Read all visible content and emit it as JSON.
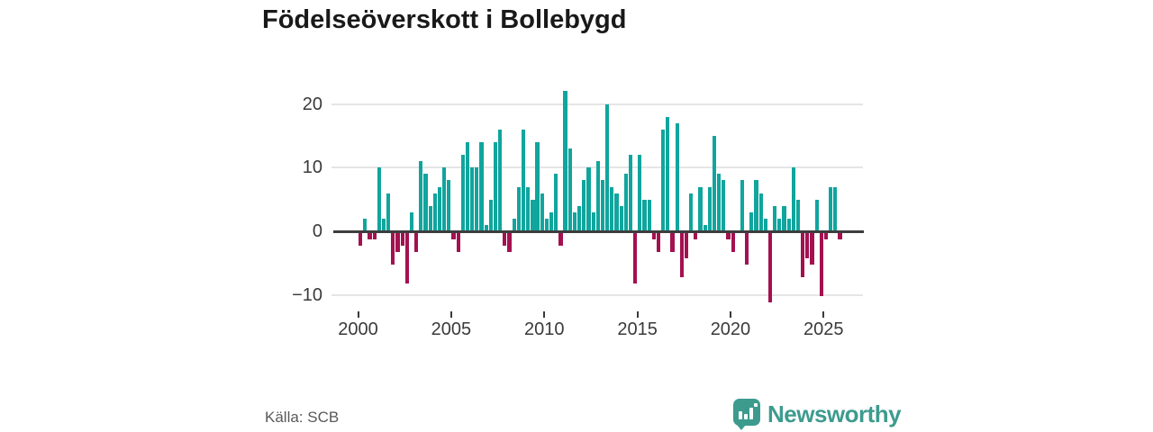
{
  "title": "Födelseöverskott i Bollebygd",
  "source": "Källa: SCB",
  "branding": {
    "logo_text": "Newsworthy",
    "brand_color": "#3d9b8e",
    "logo_icon": "bar-chart-speech-bubble"
  },
  "colors": {
    "positive_bar": "#10a59d",
    "negative_bar": "#a31150",
    "gridline": "#e5e5e5",
    "zero_line": "#3d3d3d",
    "axis_text": "#3a3a3a"
  },
  "chart_data": {
    "type": "bar",
    "title": "Födelseöverskott i Bollebygd",
    "frequency": "quarterly",
    "x_start_year": 2000,
    "xticks": [
      "2000",
      "2005",
      "2010",
      "2015",
      "2020",
      "2025"
    ],
    "yticks": [
      "20",
      "10",
      "0",
      "−10"
    ],
    "ytick_values": [
      20,
      10,
      0,
      -10
    ],
    "ylim": [
      -12,
      23
    ],
    "grid": "horizontal-only",
    "legend": "none",
    "series": [
      {
        "year": 2000,
        "q": [
          -2,
          2,
          -1,
          -1
        ]
      },
      {
        "year": 2001,
        "q": [
          10,
          2,
          6,
          -5
        ]
      },
      {
        "year": 2002,
        "q": [
          -3,
          -2,
          -8,
          3
        ]
      },
      {
        "year": 2003,
        "q": [
          -3,
          11,
          9,
          4
        ]
      },
      {
        "year": 2004,
        "q": [
          6,
          7,
          10,
          8
        ]
      },
      {
        "year": 2005,
        "q": [
          -1,
          -3,
          12,
          14
        ]
      },
      {
        "year": 2006,
        "q": [
          10,
          10,
          14,
          1
        ]
      },
      {
        "year": 2007,
        "q": [
          5,
          14,
          16,
          -2
        ]
      },
      {
        "year": 2008,
        "q": [
          -3,
          2,
          7,
          16
        ]
      },
      {
        "year": 2009,
        "q": [
          7,
          5,
          14,
          6
        ]
      },
      {
        "year": 2010,
        "q": [
          2,
          3,
          9,
          -2
        ]
      },
      {
        "year": 2011,
        "q": [
          22,
          13,
          3,
          4
        ]
      },
      {
        "year": 2012,
        "q": [
          8,
          10,
          3,
          11
        ]
      },
      {
        "year": 2013,
        "q": [
          8,
          20,
          7,
          6
        ]
      },
      {
        "year": 2014,
        "q": [
          4,
          9,
          12,
          -8
        ]
      },
      {
        "year": 2015,
        "q": [
          12,
          5,
          5,
          -1
        ]
      },
      {
        "year": 2016,
        "q": [
          -3,
          16,
          18,
          -3
        ]
      },
      {
        "year": 2017,
        "q": [
          17,
          -7,
          -4,
          6
        ]
      },
      {
        "year": 2018,
        "q": [
          -1,
          7,
          1,
          7
        ]
      },
      {
        "year": 2019,
        "q": [
          15,
          9,
          8,
          -1
        ]
      },
      {
        "year": 2020,
        "q": [
          -3,
          0,
          8,
          -5
        ]
      },
      {
        "year": 2021,
        "q": [
          3,
          8,
          6,
          2
        ]
      },
      {
        "year": 2022,
        "q": [
          -11,
          4,
          2,
          4
        ]
      },
      {
        "year": 2023,
        "q": [
          2,
          10,
          5,
          -7
        ]
      },
      {
        "year": 2024,
        "q": [
          -4,
          -5,
          5,
          -10
        ]
      },
      {
        "year": 2025,
        "q": [
          -1,
          7,
          7,
          -1
        ]
      }
    ]
  }
}
